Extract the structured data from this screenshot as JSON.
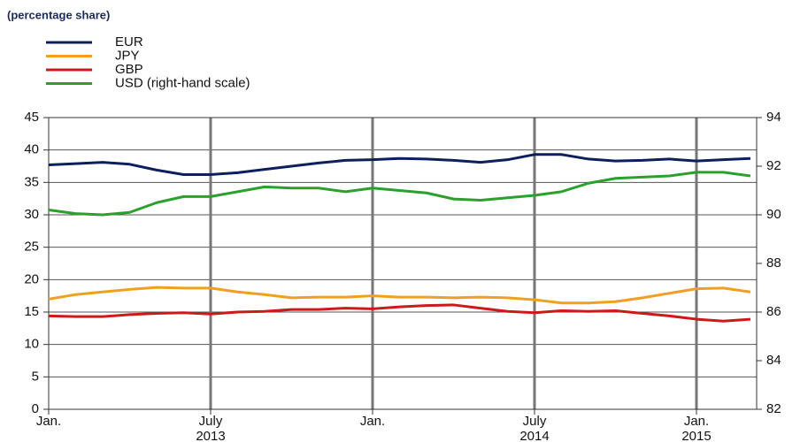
{
  "chart_data": {
    "type": "line",
    "title": "(percentage share)",
    "categories": [
      "Jan.",
      null,
      null,
      null,
      null,
      null,
      "July 2013",
      null,
      null,
      null,
      null,
      null,
      "Jan.",
      null,
      null,
      null,
      null,
      null,
      "July 2014",
      null,
      null,
      null,
      null,
      null,
      "Jan. 2015",
      null,
      null
    ],
    "series": [
      {
        "name": "EUR",
        "color": "#0d1f5c",
        "values": [
          37.7,
          37.9,
          38.1,
          37.8,
          36.9,
          36.2,
          36.2,
          36.5,
          37.0,
          37.5,
          38.0,
          38.4,
          38.5,
          38.7,
          38.6,
          38.4,
          38.1,
          38.5,
          39.3,
          39.3,
          38.6,
          38.3,
          38.4,
          38.6,
          38.3,
          38.5,
          38.7
        ]
      },
      {
        "name": "JPY",
        "color": "#f0a020",
        "values": [
          17.0,
          17.7,
          18.1,
          18.5,
          18.8,
          18.7,
          18.7,
          18.1,
          17.7,
          17.2,
          17.3,
          17.3,
          17.5,
          17.3,
          17.3,
          17.2,
          17.3,
          17.2,
          16.9,
          16.4,
          16.4,
          16.6,
          17.2,
          17.9,
          18.6,
          18.7,
          18.1
        ]
      },
      {
        "name": "GBP",
        "color": "#cc1a1a",
        "values": [
          14.4,
          14.3,
          14.3,
          14.6,
          14.8,
          14.9,
          14.7,
          15.0,
          15.1,
          15.4,
          15.4,
          15.6,
          15.5,
          15.8,
          16.0,
          16.1,
          15.6,
          15.1,
          14.9,
          15.2,
          15.1,
          15.2,
          14.8,
          14.4,
          13.9,
          13.6,
          13.9
        ]
      },
      {
        "name": "USD (right-hand scale)",
        "color": "#2ca02c",
        "axis": "y2",
        "values": [
          90.2,
          90.05,
          90.0,
          90.1,
          90.5,
          90.75,
          90.75,
          90.95,
          91.15,
          91.1,
          91.1,
          90.95,
          91.1,
          91.0,
          90.9,
          90.65,
          90.6,
          90.7,
          90.8,
          90.95,
          91.3,
          91.5,
          91.55,
          91.6,
          91.75,
          91.75,
          91.6
        ]
      }
    ],
    "ylim": [
      0,
      45
    ],
    "yticks": [
      0,
      5,
      10,
      15,
      20,
      25,
      30,
      35,
      40,
      45
    ],
    "y2lim": [
      82,
      94
    ],
    "y2ticks": [
      82,
      84,
      86,
      88,
      90,
      92,
      94
    ],
    "grid": true
  }
}
